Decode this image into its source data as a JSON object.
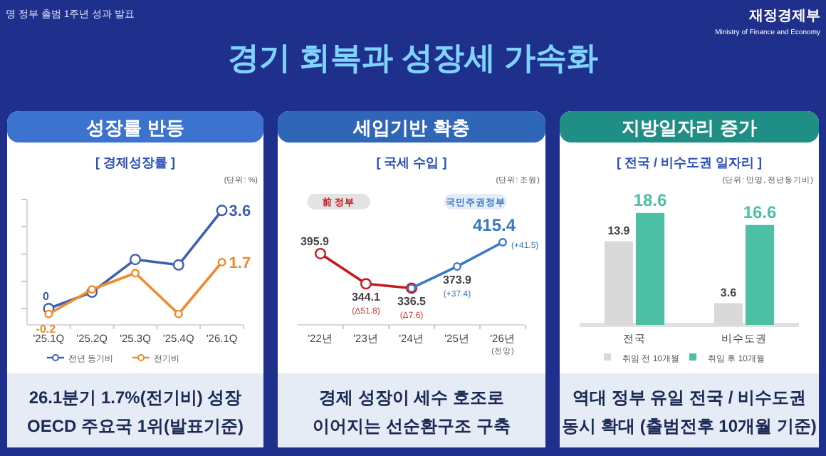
{
  "chart_data": [
    {
      "type": "line",
      "title": "성장률 반등",
      "subtitle": "[ 경제성장률 ]",
      "categories": [
        "'25.1Q",
        "'25.2Q",
        "'25.3Q",
        "'25.4Q",
        "'26.1Q"
      ],
      "series": [
        {
          "name": "전년 동기비",
          "color": "#3d5fb0",
          "values": [
            0,
            0.6,
            1.8,
            1.6,
            3.6
          ],
          "value_labels": [
            "0",
            null,
            null,
            null,
            "3.6"
          ]
        },
        {
          "name": "전기비",
          "color": "#f08a2c",
          "values": [
            -0.2,
            0.7,
            1.3,
            -0.2,
            1.7
          ],
          "value_labels": [
            "-0.2",
            null,
            null,
            null,
            "1.7"
          ]
        }
      ],
      "ylim": [
        -0.6,
        4.0
      ],
      "yticks": [
        {
          "value": 0,
          "label": null
        },
        {
          "value": 1,
          "label": null
        },
        {
          "value": 2,
          "label": null
        },
        {
          "value": 3,
          "label": null
        },
        {
          "value": 4,
          "label": null
        }
      ],
      "tick_labels": "x",
      "marker": "circle",
      "legend": "bottom",
      "annotations": [
        "명 정부 출범 1주년 성과 발표",
        "경기 회복과 성장세 가속화",
        "재정경제부",
        "Ministry of Finance and Economy",
        "(단위: %)",
        "26.1분기 1.7%(전기비) 성장",
        "OECD 주요국 1위(발표기준)"
      ]
    },
    {
      "type": "line",
      "title": "세입기반 확충",
      "subtitle": "[ 국세 수입 ]",
      "categories": [
        "'22년",
        "'23년",
        "'24년",
        "'25년",
        "'26년"
      ],
      "series": [
        {
          "name": "前 정부",
          "color": "#c8161d",
          "values": [
            395.9,
            344.1,
            336.5,
            null,
            null
          ],
          "value_labels": [
            "395.9",
            "344.1",
            "336.5",
            null,
            null
          ]
        },
        {
          "name": "국민주권정부",
          "color": "#3a78c8",
          "values": [
            null,
            null,
            336.5,
            373.9,
            415.4
          ],
          "value_labels": [
            null,
            null,
            null,
            "373.9",
            "415.4"
          ]
        }
      ],
      "tick_labels": "x",
      "marker": "circle",
      "annotations": [
        "(단위: 조원)",
        "경제 성장이 세수 호조로",
        "이어지는 선순환구조 구축",
        {
          "text": "(Δ51.8)",
          "x": "'23년",
          "y": 344.1
        },
        {
          "text": "(Δ7.6)",
          "x": "'24년",
          "y": 336.5
        },
        {
          "text": "(+37.4)",
          "x": "'25년",
          "y": 373.9
        },
        {
          "text": "(+41.5)",
          "x": "'26년",
          "y": 415.4
        },
        "(전망)"
      ]
    },
    {
      "type": "bar",
      "title": "지방일자리 증가",
      "subtitle": "[ 전국 / 비수도권 일자리 ]",
      "categories": [
        "전국",
        "비수도권"
      ],
      "series": [
        {
          "name": "취임 전 10개월",
          "color": "#d9d9d9",
          "values": [
            13.9,
            3.6
          ]
        },
        {
          "name": "취임 후 10개월",
          "color": "#4dbfa5",
          "values": [
            18.6,
            16.6
          ]
        }
      ],
      "tick_labels": "x",
      "data_labels": true,
      "legend": "bottom",
      "annotations": [
        "(단위: 만명, 전년동기비)",
        "역대 정부 유일 전국 / 비수도권",
        "동시 확대 (출범전후 10개월 기준)"
      ]
    }
  ]
}
